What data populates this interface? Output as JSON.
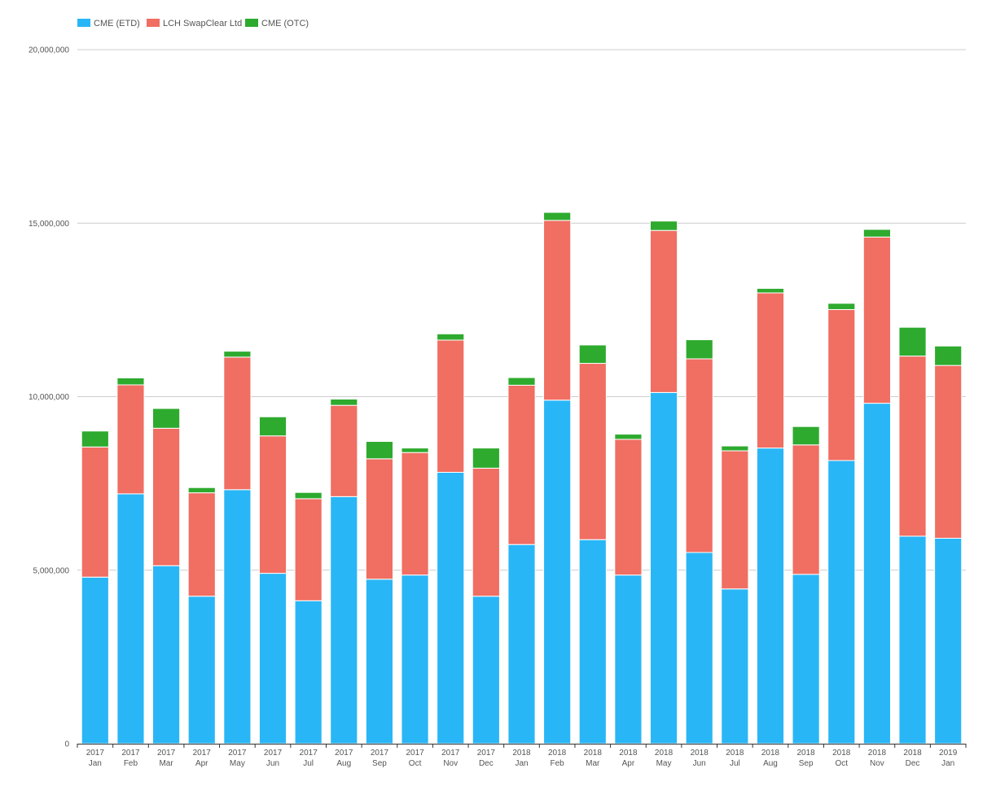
{
  "chart_data": {
    "type": "bar",
    "stacked": true,
    "categories": [
      {
        "year": "2017",
        "month": "Jan"
      },
      {
        "year": "2017",
        "month": "Feb"
      },
      {
        "year": "2017",
        "month": "Mar"
      },
      {
        "year": "2017",
        "month": "Apr"
      },
      {
        "year": "2017",
        "month": "May"
      },
      {
        "year": "2017",
        "month": "Jun"
      },
      {
        "year": "2017",
        "month": "Jul"
      },
      {
        "year": "2017",
        "month": "Aug"
      },
      {
        "year": "2017",
        "month": "Sep"
      },
      {
        "year": "2017",
        "month": "Oct"
      },
      {
        "year": "2017",
        "month": "Nov"
      },
      {
        "year": "2017",
        "month": "Dec"
      },
      {
        "year": "2018",
        "month": "Jan"
      },
      {
        "year": "2018",
        "month": "Feb"
      },
      {
        "year": "2018",
        "month": "Mar"
      },
      {
        "year": "2018",
        "month": "Apr"
      },
      {
        "year": "2018",
        "month": "May"
      },
      {
        "year": "2018",
        "month": "Jun"
      },
      {
        "year": "2018",
        "month": "Jul"
      },
      {
        "year": "2018",
        "month": "Aug"
      },
      {
        "year": "2018",
        "month": "Sep"
      },
      {
        "year": "2018",
        "month": "Oct"
      },
      {
        "year": "2018",
        "month": "Nov"
      },
      {
        "year": "2018",
        "month": "Dec"
      },
      {
        "year": "2019",
        "month": "Jan"
      }
    ],
    "series": [
      {
        "name": "CME (ETD)",
        "color": "#29b6f6",
        "values": [
          4800000,
          7200000,
          5130000,
          4250000,
          7320000,
          4910000,
          4120000,
          7120000,
          4740000,
          4860000,
          7820000,
          4250000,
          5740000,
          9900000,
          5880000,
          4860000,
          10120000,
          5510000,
          4460000,
          8520000,
          4880000,
          8160000,
          9810000,
          5980000,
          5920000
        ]
      },
      {
        "name": "LCH SwapClear Ltd",
        "color": "#f06e62",
        "values": [
          3750000,
          3140000,
          3960000,
          2980000,
          3820000,
          3960000,
          2940000,
          2630000,
          3470000,
          3530000,
          3810000,
          3690000,
          4590000,
          5180000,
          5080000,
          3910000,
          4670000,
          5580000,
          3980000,
          4470000,
          3730000,
          4350000,
          4790000,
          5190000,
          4980000
        ]
      },
      {
        "name": "CME (OTC)",
        "color": "#2eaa2e",
        "values": [
          460000,
          200000,
          570000,
          150000,
          170000,
          550000,
          180000,
          180000,
          500000,
          130000,
          180000,
          580000,
          220000,
          230000,
          530000,
          150000,
          270000,
          550000,
          140000,
          130000,
          530000,
          180000,
          220000,
          830000,
          560000
        ]
      }
    ],
    "ylim": [
      0,
      20000000
    ],
    "yticks": [
      0,
      5000000,
      10000000,
      15000000,
      20000000
    ],
    "ytick_labels": [
      "0",
      "5,000,000",
      "10,000,000",
      "15,000,000",
      "20,000,000"
    ],
    "grid": true,
    "legend_position": "top-left",
    "title": "",
    "xlabel": "",
    "ylabel": ""
  }
}
